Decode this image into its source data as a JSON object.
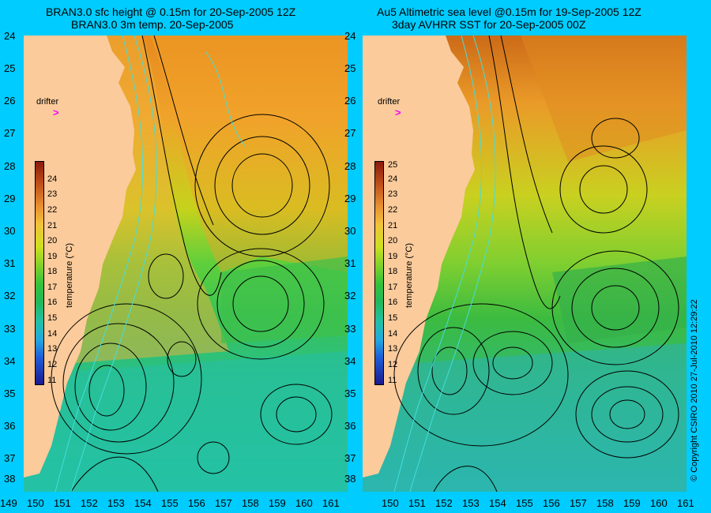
{
  "left_panel": {
    "title_line1": "BRAN3.0 sfc height @ 0.15m for 20-Sep-2005 12Z",
    "title_line2": "BRAN3.0 3m temp. 20-Sep-2005",
    "colorbar_ticks": [
      "24",
      "23",
      "22",
      "21",
      "20",
      "19",
      "18",
      "17",
      "16",
      "15",
      "14",
      "13",
      "12",
      "11"
    ],
    "colorbar_label": "temperature (°C)",
    "drifter_label": "drifter"
  },
  "right_panel": {
    "title_line1": "Au5 Altimetric sea level  @0.15m  for 19-Sep-2005 12Z",
    "title_line2": "3day AVHRR SST for 20-Sep-2005 00Z",
    "colorbar_ticks": [
      "25",
      "24",
      "23",
      "22",
      "21",
      "20",
      "19",
      "18",
      "17",
      "16",
      "15",
      "14",
      "13",
      "12",
      "11"
    ],
    "colorbar_label": "temperature (°C)",
    "drifter_label": "drifter"
  },
  "lat_ticks": [
    "24",
    "25",
    "26",
    "27",
    "28",
    "29",
    "30",
    "31",
    "32",
    "33",
    "34",
    "35",
    "36",
    "37",
    "38"
  ],
  "lon_ticks": [
    "149",
    "150",
    "151",
    "152",
    "153",
    "154",
    "155",
    "156",
    "157",
    "158",
    "159",
    "160",
    "161"
  ],
  "drifter_marker": ">",
  "copyright": "© Copyright CSIRO 2010   27-Jul-2010 12:29:22",
  "colors": {
    "background": "#00ccff",
    "land": "#fbcb9b",
    "drifter": "#ff00ff",
    "contour": "#000000",
    "isobath": "#44dddd"
  }
}
